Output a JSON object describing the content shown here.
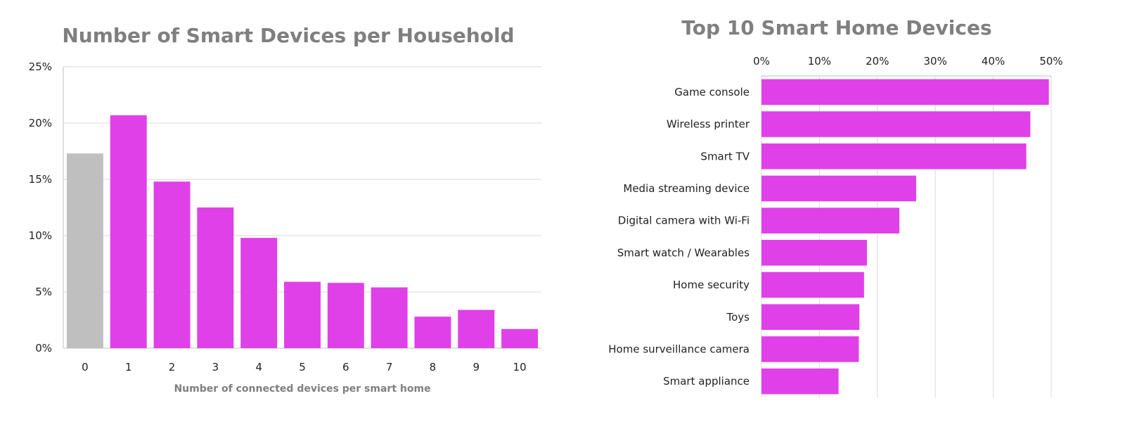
{
  "chart_data": [
    {
      "type": "bar",
      "title": "Number of Smart Devices per Household",
      "xlabel": "Number of connected devices per smart home",
      "ylabel": "",
      "categories": [
        "0",
        "1",
        "2",
        "3",
        "4",
        "5",
        "6",
        "7",
        "8",
        "9",
        "10"
      ],
      "values": [
        17.3,
        20.7,
        14.8,
        12.5,
        9.8,
        5.9,
        5.8,
        5.4,
        2.8,
        3.4,
        1.7
      ],
      "ylim": [
        0,
        25
      ],
      "yticks": [
        "0%",
        "5%",
        "10%",
        "15%",
        "20%",
        "25%"
      ],
      "ytick_values": [
        0,
        5,
        10,
        15,
        20,
        25
      ],
      "grid": true,
      "colors": {
        "highlight": "#bfbfbf",
        "bar": "#e040e8"
      },
      "highlight_index": 0
    },
    {
      "type": "bar",
      "orientation": "horizontal",
      "title": "Top 10 Smart Home Devices",
      "categories": [
        "Game console",
        "Wireless printer",
        "Smart TV",
        "Media streaming device",
        "Digital camera with Wi-Fi",
        "Smart watch / Wearables",
        "Home security",
        "Toys",
        "Home surveillance camera",
        "Smart appliance"
      ],
      "values": [
        49.6,
        46.4,
        45.7,
        26.7,
        23.8,
        18.2,
        17.7,
        16.9,
        16.8,
        13.3
      ],
      "xlim": [
        0,
        50
      ],
      "xticks": [
        "0%",
        "10%",
        "20%",
        "30%",
        "40%",
        "50%"
      ],
      "xtick_values": [
        0,
        10,
        20,
        30,
        40,
        50
      ],
      "xaxis_position": "top",
      "grid": true,
      "colors": {
        "bar": "#e040e8"
      }
    }
  ]
}
